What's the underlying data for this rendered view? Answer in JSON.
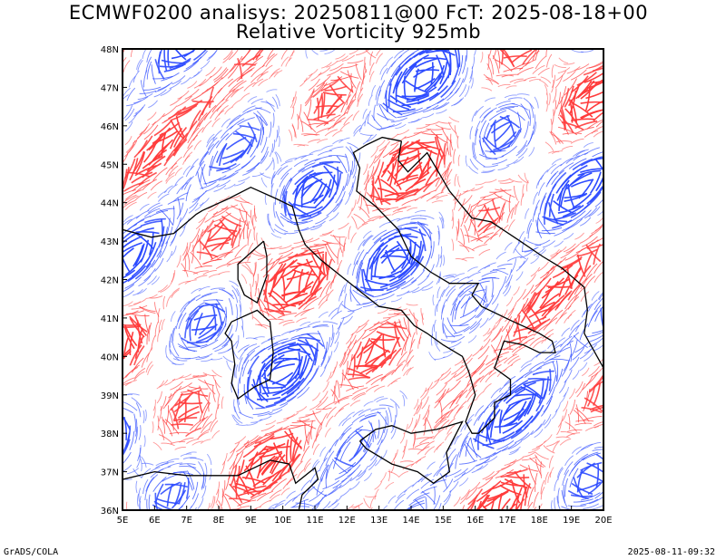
{
  "header": {
    "line1": "ECMWF0200 analisys: 20250811@00 FcT: 2025-08-18+00",
    "line2": "Relative Vorticity 925mb"
  },
  "footer": {
    "left": "GrADS/COLA",
    "right": "2025-08-11-09:32"
  },
  "map": {
    "lon_range": [
      5,
      20
    ],
    "lat_range": [
      36,
      48
    ],
    "lon_ticks": [
      "5E",
      "6E",
      "7E",
      "8E",
      "9E",
      "10E",
      "11E",
      "12E",
      "13E",
      "14E",
      "15E",
      "16E",
      "17E",
      "18E",
      "19E",
      "20E"
    ],
    "lat_ticks": [
      "36N",
      "37N",
      "38N",
      "39N",
      "40N",
      "41N",
      "42N",
      "43N",
      "44N",
      "45N",
      "46N",
      "47N",
      "48N"
    ],
    "colors": {
      "positive": "#ff3b3b",
      "negative": "#2d4bff",
      "coast": "#000000",
      "frame": "#000000"
    }
  }
}
